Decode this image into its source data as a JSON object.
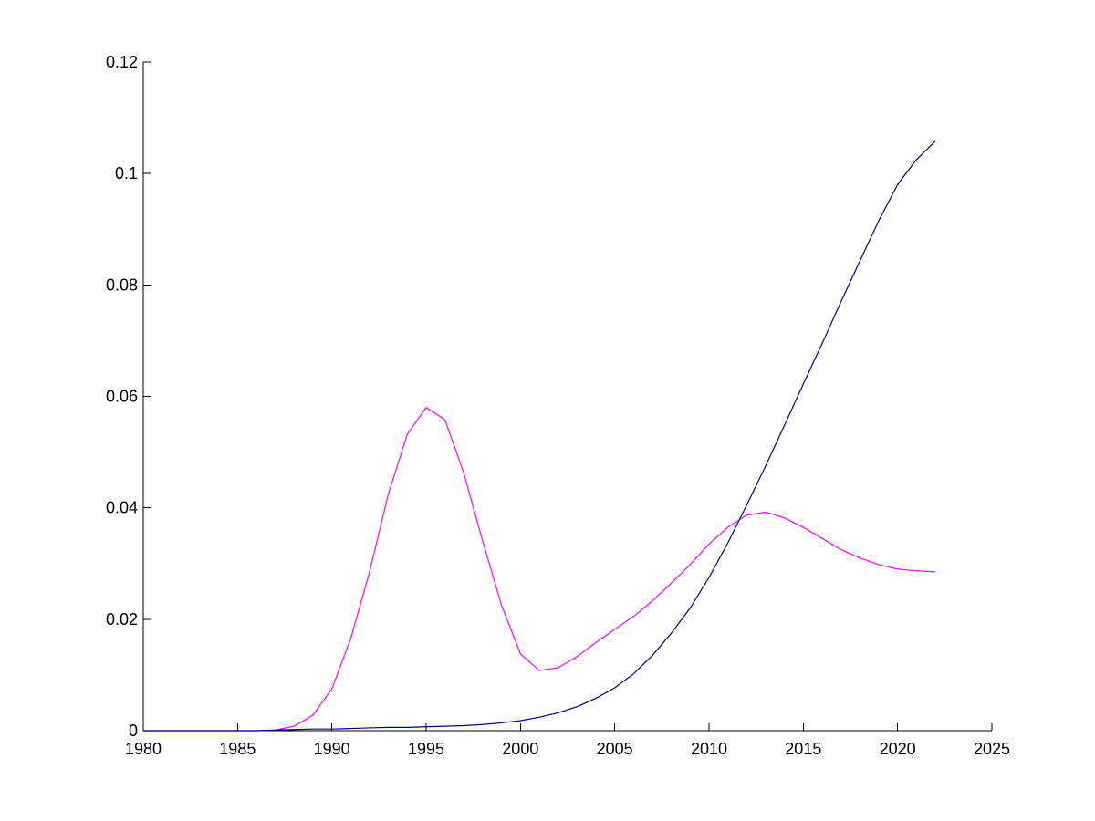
{
  "chart_data": {
    "type": "line",
    "xlim": [
      1980,
      2025
    ],
    "ylim": [
      0,
      0.12
    ],
    "xticks": [
      "1980",
      "1985",
      "1990",
      "1995",
      "2000",
      "2005",
      "2010",
      "2015",
      "2020",
      "2025"
    ],
    "yticks": [
      "0",
      "0.02",
      "0.04",
      "0.06",
      "0.08",
      "0.1",
      "0.12"
    ],
    "grid": false,
    "x": [
      1980,
      1981,
      1982,
      1983,
      1984,
      1985,
      1986,
      1987,
      1988,
      1989,
      1990,
      1991,
      1992,
      1993,
      1994,
      1995,
      1996,
      1997,
      1998,
      1999,
      2000,
      2001,
      2002,
      2003,
      2004,
      2005,
      2006,
      2007,
      2008,
      2009,
      2010,
      2011,
      2012,
      2013,
      2014,
      2015,
      2016,
      2017,
      2018,
      2019,
      2020,
      2021,
      2022
    ],
    "series": [
      {
        "color": "#ff00ff",
        "values": [
          0,
          0,
          0,
          0,
          0,
          0,
          0,
          0.0001,
          0.0008,
          0.0028,
          0.0075,
          0.0165,
          0.0285,
          0.0425,
          0.0532,
          0.058,
          0.0558,
          0.0462,
          0.034,
          0.0225,
          0.0138,
          0.0108,
          0.0113,
          0.0133,
          0.0158,
          0.0182,
          0.0205,
          0.0233,
          0.0265,
          0.0298,
          0.0335,
          0.0365,
          0.0387,
          0.0392,
          0.0382,
          0.0365,
          0.0345,
          0.0325,
          0.031,
          0.0298,
          0.029,
          0.0287,
          0.0285
        ]
      },
      {
        "color": "#00008b",
        "values": [
          0,
          0,
          0,
          0,
          0,
          0,
          0,
          0.0001,
          0.0002,
          0.0003,
          0.0003,
          0.0004,
          0.0005,
          0.0006,
          0.0006,
          0.0007,
          0.0008,
          0.0009,
          0.0011,
          0.0014,
          0.0018,
          0.0024,
          0.0032,
          0.0043,
          0.0058,
          0.0077,
          0.0102,
          0.0135,
          0.0175,
          0.022,
          0.0275,
          0.0337,
          0.0405,
          0.0475,
          0.0548,
          0.0622,
          0.0695,
          0.077,
          0.0843,
          0.0915,
          0.098,
          0.1025,
          0.1058
        ]
      }
    ]
  }
}
